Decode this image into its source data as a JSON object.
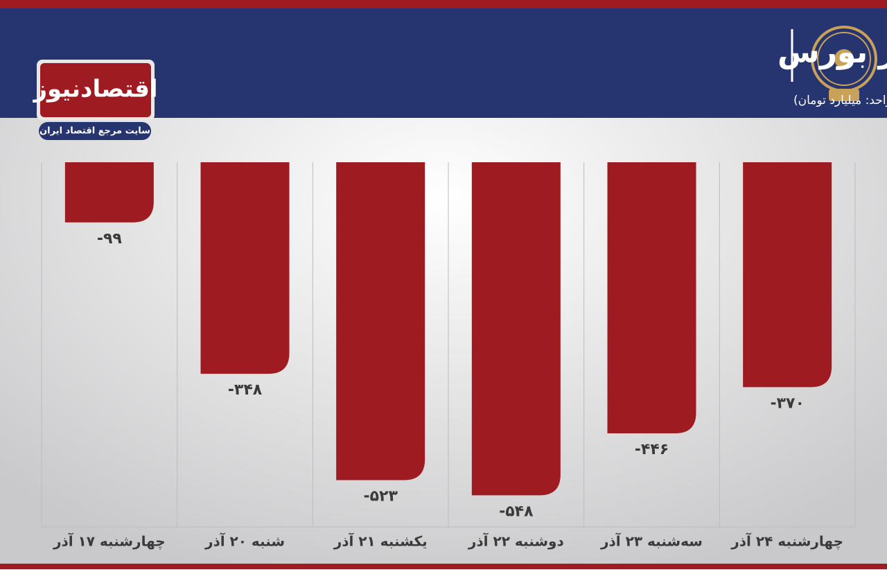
{
  "brand": {
    "name": "اقتصادنیوز",
    "tagline": "سایت مرجع اقتصاد ایران"
  },
  "chart_data": {
    "type": "bar",
    "title": "روند ورود و خروج پول حقیقی در بورس",
    "subtitle": "(واحد: میلیارد تومان)",
    "categories": [
      "چهارشنبه ۱۷ آذر",
      "شنبه ۲۰ آذر",
      "یکشنبه ۲۱ آذر",
      "دوشنبه ۲۲ آذر",
      "سه‌شنبه ۲۳ آذر",
      "چهارشنبه ۲۴ آذر"
    ],
    "values": [
      -99,
      -348,
      -523,
      -548,
      -446,
      -370
    ],
    "value_labels": [
      "-۹۹",
      "-۳۴۸",
      "-۵۲۳",
      "-۵۴۸",
      "-۴۴۶",
      "-۳۷۰"
    ],
    "color": "#9e1b21",
    "ylim": [
      -600,
      0
    ]
  }
}
